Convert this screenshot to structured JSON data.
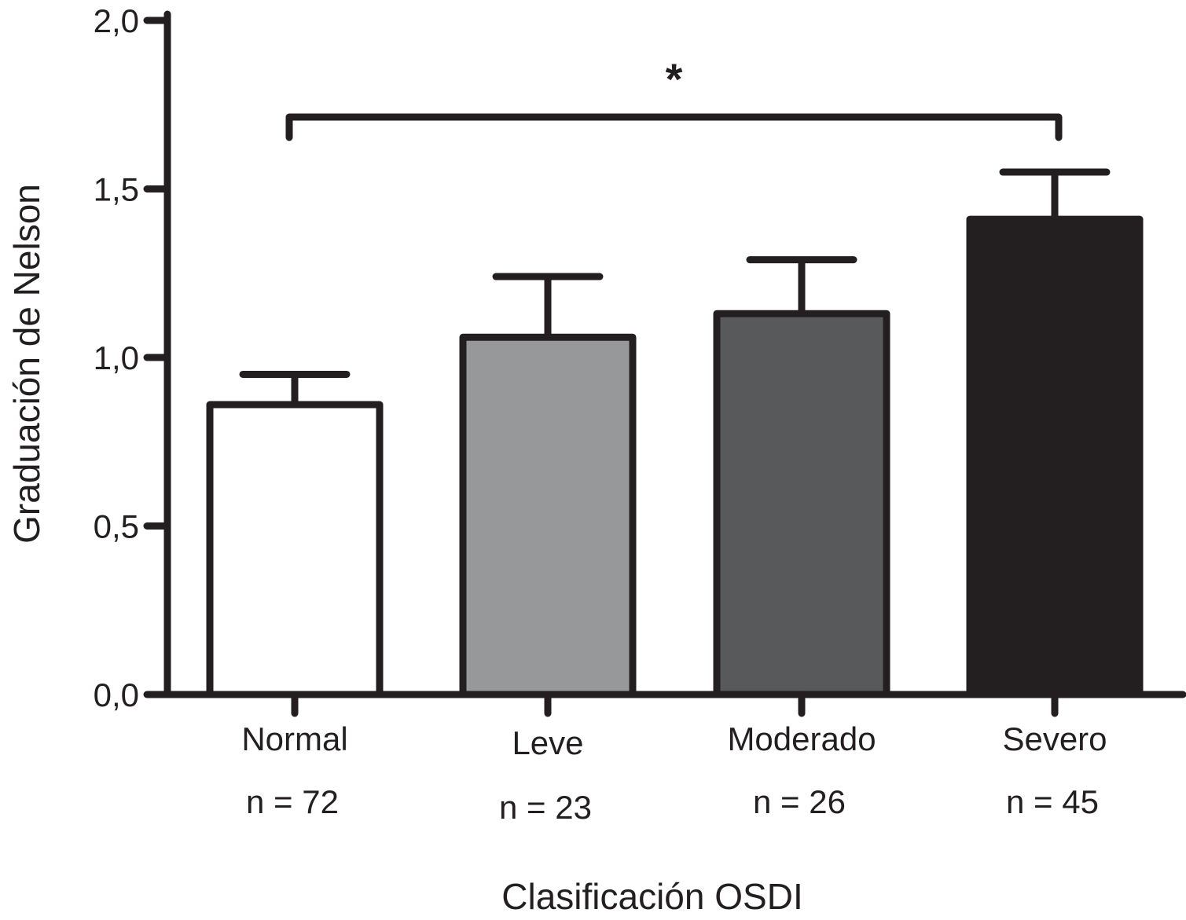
{
  "chart_data": {
    "type": "bar",
    "categories": [
      "Normal",
      "Leve",
      "Moderado",
      "Severo"
    ],
    "sample_sizes": [
      "n = 72",
      "n = 23",
      "n = 26",
      "n = 45"
    ],
    "values": [
      0.86,
      1.06,
      1.13,
      1.41
    ],
    "error_upper": [
      0.95,
      1.24,
      1.29,
      1.55
    ],
    "bar_colors": [
      "#ffffff",
      "#97989a",
      "#58595b",
      "#231f20"
    ],
    "outline_color": "#231f20",
    "xlabel": "Clasificación OSDI",
    "ylabel": "Graduación de Nelson",
    "ylim": [
      0,
      2.0
    ],
    "yticks": [
      0.0,
      0.5,
      1.0,
      1.5,
      2.0
    ],
    "ytick_labels": [
      "0,0",
      "0,5",
      "1,0",
      "1,5",
      "2,0"
    ],
    "significance": {
      "from": "Normal",
      "to": "Severo",
      "label": "*"
    },
    "grid": false,
    "legend": "none"
  }
}
